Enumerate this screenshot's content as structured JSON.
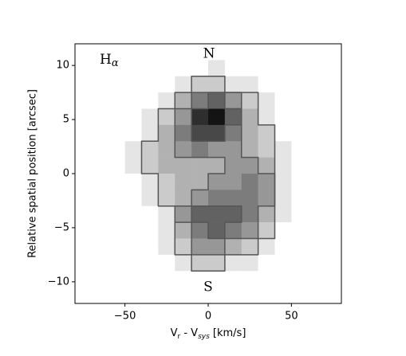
{
  "chart_data": {
    "type": "heatmap",
    "xlabel": [
      "V",
      "r",
      " - V",
      "sys",
      " [km/s]"
    ],
    "ylabel": "Relative spatial position [arcsec]",
    "annotations": {
      "line": [
        "H",
        "α"
      ],
      "north": "N",
      "south": "S"
    },
    "xlim": [
      -80,
      80
    ],
    "ylim": [
      -12,
      12
    ],
    "xticks": [
      {
        "value": -50,
        "label": "−50"
      },
      0,
      50
    ],
    "yticks": [
      {
        "value": -10,
        "label": "−10"
      },
      {
        "value": -5,
        "label": "−5"
      },
      0,
      5,
      10
    ],
    "xbins": [
      -80,
      -70,
      -60,
      -50,
      -40,
      -30,
      -20,
      -10,
      0,
      10,
      20,
      30,
      40,
      50,
      60,
      70,
      80
    ],
    "ybins": [
      12,
      10.5,
      9,
      7.5,
      6,
      4.5,
      3,
      1.5,
      0,
      -1.5,
      -3,
      -4.5,
      -6,
      -7.5,
      -9,
      -10.5,
      -12
    ],
    "zlim": [
      0,
      9
    ],
    "cmap": [
      "#ffffff",
      "#141414"
    ],
    "contour_levels": [
      2,
      4,
      6
    ],
    "contour_color": "#555555",
    "z": [
      [
        0,
        0,
        0,
        0,
        0,
        0,
        0,
        0,
        0,
        0,
        0,
        0,
        0,
        0,
        0,
        0
      ],
      [
        0,
        0,
        0,
        0,
        0,
        0,
        0,
        0,
        1,
        0,
        0,
        0,
        0,
        0,
        0,
        0
      ],
      [
        0,
        0,
        0,
        0,
        0,
        0,
        1,
        2,
        2,
        1,
        1,
        0,
        0,
        0,
        0,
        0
      ],
      [
        0,
        0,
        0,
        0,
        0,
        1,
        3,
        5,
        6,
        4,
        2,
        1,
        0,
        0,
        0,
        0
      ],
      [
        0,
        0,
        0,
        0,
        1,
        2,
        4,
        8,
        9,
        6,
        3,
        1,
        0,
        0,
        0,
        0
      ],
      [
        0,
        0,
        0,
        0,
        1,
        3,
        5,
        7,
        7,
        5,
        3,
        2,
        0,
        0,
        0,
        0
      ],
      [
        0,
        0,
        0,
        1,
        2,
        3,
        4,
        5,
        4,
        4,
        3,
        2,
        1,
        0,
        0,
        0
      ],
      [
        0,
        0,
        0,
        1,
        2,
        3,
        3,
        3,
        3,
        4,
        4,
        3,
        1,
        0,
        0,
        0
      ],
      [
        0,
        0,
        0,
        0,
        1,
        2,
        3,
        3,
        4,
        4,
        5,
        4,
        1,
        0,
        0,
        0
      ],
      [
        0,
        0,
        0,
        0,
        1,
        2,
        3,
        4,
        5,
        5,
        5,
        4,
        1,
        0,
        0,
        0
      ],
      [
        0,
        0,
        0,
        0,
        0,
        1,
        4,
        6,
        6,
        6,
        5,
        3,
        1,
        0,
        0,
        0
      ],
      [
        0,
        0,
        0,
        0,
        0,
        1,
        3,
        5,
        6,
        5,
        4,
        2,
        0,
        0,
        0,
        0
      ],
      [
        0,
        0,
        0,
        0,
        0,
        1,
        2,
        4,
        4,
        3,
        2,
        1,
        0,
        0,
        0,
        0
      ],
      [
        0,
        0,
        0,
        0,
        0,
        0,
        1,
        2,
        2,
        1,
        1,
        0,
        0,
        0,
        0,
        0
      ],
      [
        0,
        0,
        0,
        0,
        0,
        0,
        0,
        0,
        0,
        0,
        0,
        0,
        0,
        0,
        0,
        0
      ],
      [
        0,
        0,
        0,
        0,
        0,
        0,
        0,
        0,
        0,
        0,
        0,
        0,
        0,
        0,
        0,
        0
      ]
    ]
  }
}
